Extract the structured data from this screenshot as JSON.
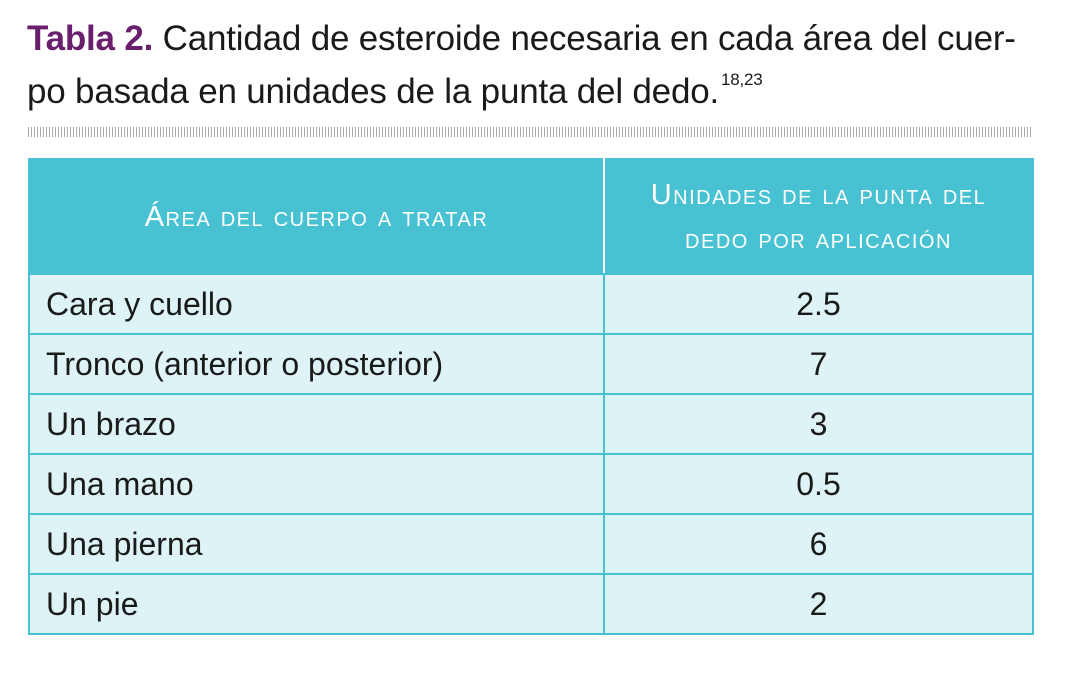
{
  "caption": {
    "label": "Tabla 2.",
    "text": "Cantidad de esteroide necesaria en cada área del cuer-po basada en unidades de la punta del dedo.",
    "refs": "18,23"
  },
  "table": {
    "headers": [
      "Área del cuerpo a tratar",
      "Unidades de la punta del dedo por aplicación"
    ],
    "rows": [
      {
        "area": "Cara y cuello",
        "units": "2.5"
      },
      {
        "area": "Tronco (anterior o posterior)",
        "units": "7"
      },
      {
        "area": "Un brazo",
        "units": "3"
      },
      {
        "area": "Una mano",
        "units": "0.5"
      },
      {
        "area": "Una pierna",
        "units": "6"
      },
      {
        "area": "Un pie",
        "units": "2"
      }
    ]
  },
  "colors": {
    "header_bg": "#48c2d3",
    "row_bg": "#ddf3f6",
    "label": "#6a1f6e"
  }
}
